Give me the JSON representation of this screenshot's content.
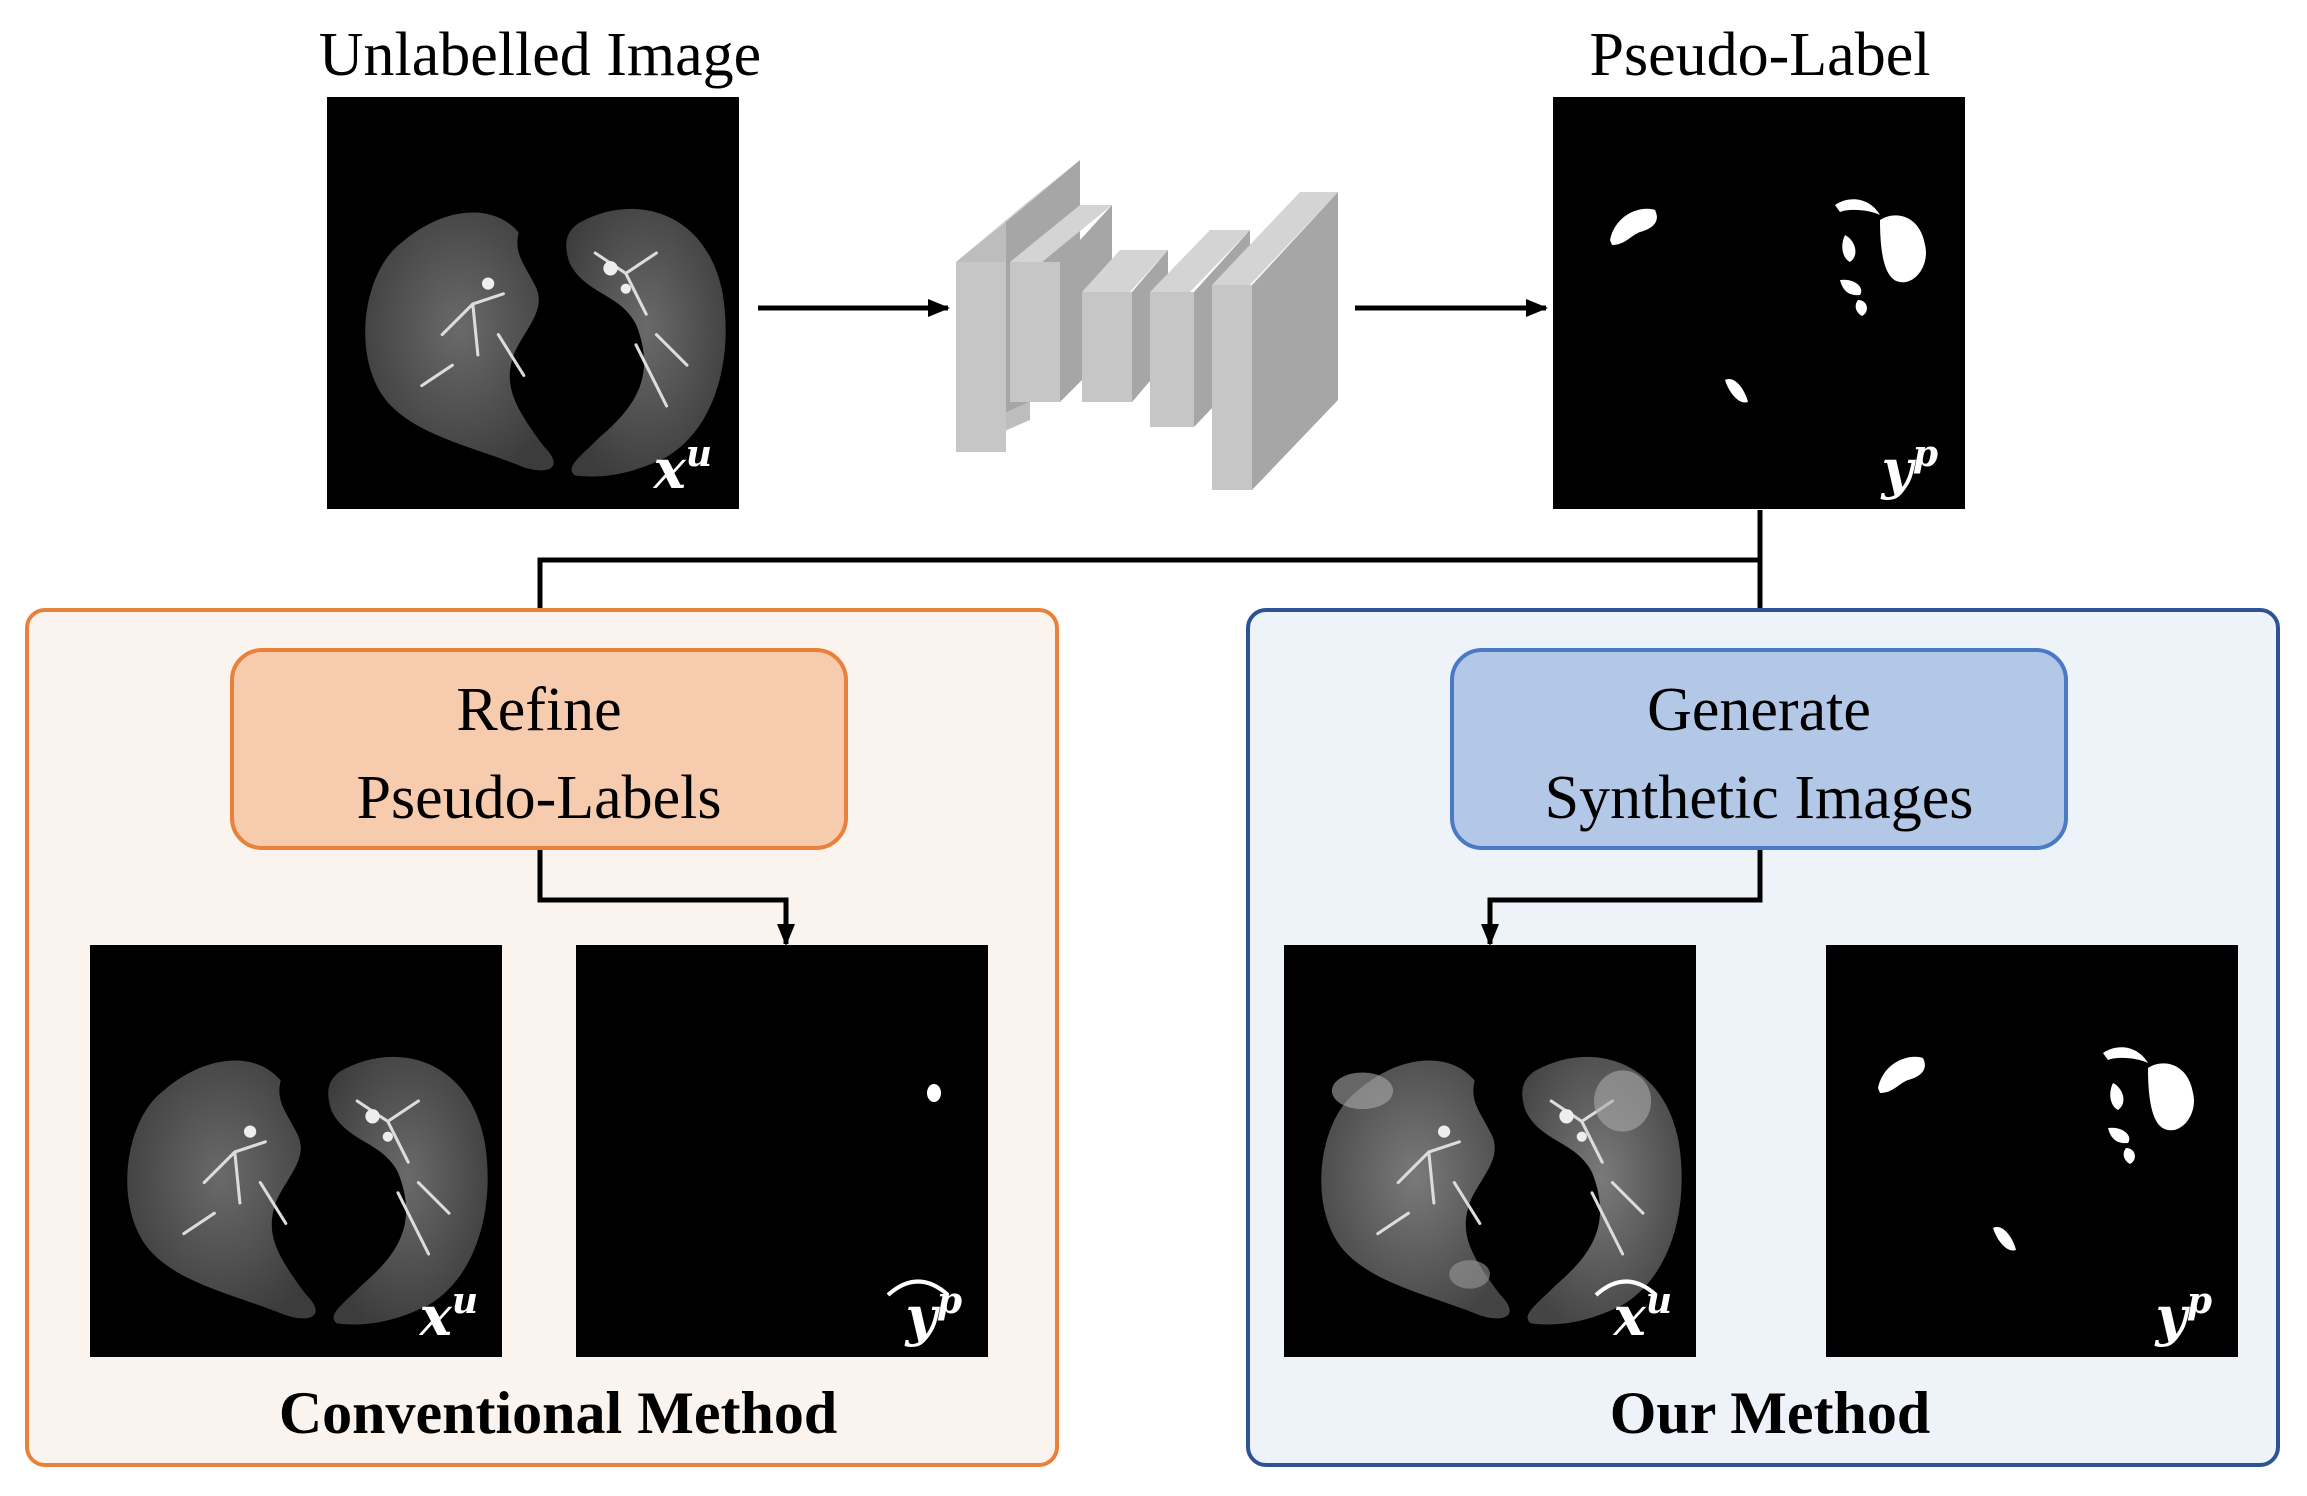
{
  "top": {
    "unlabelled_title": "Unlabelled Image",
    "pseudo_title": "Pseudo-Label",
    "img_label_xu": "x",
    "img_label_xu_sup": "u",
    "img_label_yp": "y",
    "img_label_yp_sup": "p"
  },
  "conventional": {
    "box_line1": "Refine",
    "box_line2": "Pseudo-Labels",
    "caption": "Conventional Method",
    "left_label": "x",
    "left_label_sup": "u",
    "right_label": "y",
    "right_label_sup": "p"
  },
  "ours": {
    "box_line1": "Generate",
    "box_line2": "Synthetic Images",
    "caption": "Our Method",
    "left_label": "x",
    "left_label_sup": "u",
    "right_label": "y",
    "right_label_sup": "p"
  },
  "colors": {
    "conventional_panel_bg": "#fbf3ee",
    "conventional_panel_border": "#e8823a",
    "conventional_box_bg": "#f7cbae",
    "ours_panel_bg": "#eef2f9",
    "ours_panel_border": "#2e5395",
    "ours_box_bg": "#b3c7e6",
    "ours_box_border": "#4a79c5"
  }
}
